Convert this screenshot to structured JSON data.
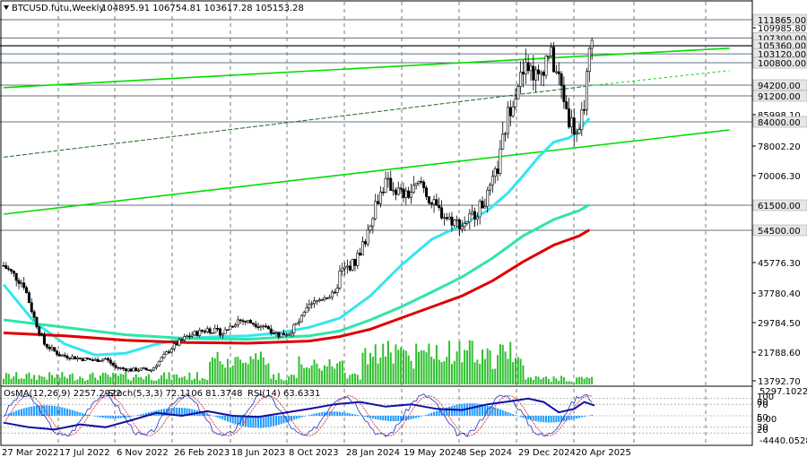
{
  "header": {
    "symbol": "BTCUSD.futu,Weekly",
    "ohlc": "104895.91 106754.81 103617.28 105153.28"
  },
  "indicator_header": {
    "osma": "OsMA(12,26,9) 2257.2922",
    "stoch": "Stoch(5,3,3) 72.1106 81.3748",
    "rsi": "RSI(14) 63.6331"
  },
  "colors": {
    "background": "#ffffff",
    "candles": "#000000",
    "channel": "#00dd00",
    "ema_cyan": "#33e6f0",
    "ema_green": "#2ee6a6",
    "ema_red": "#dd0000",
    "volume": "#2fbf2f",
    "osma": "#1e9bff",
    "stoch_main": "#2030c0",
    "stoch_signal": "#e02020",
    "rsi": "#8a2be2",
    "level_lines": "#607080",
    "highlight_label": "#e6e6e6"
  },
  "chart_data": [
    {
      "type": "candlestick",
      "symbol": "BTCUSD.futu",
      "timeframe": "Weekly",
      "x_tick_labels": [
        "27 Mar 2022",
        "17 Jul 2022",
        "6 Nov 2022",
        "26 Feb 2023",
        "18 Jun 2023",
        "8 Oct 2023",
        "28 Jan 2024",
        "19 May 2024",
        "8 Sep 2024",
        "29 Dec 2024",
        "20 Apr 2025"
      ],
      "y_tick_labels": [
        "109985.80",
        "85998.10",
        "78002.20",
        "70006.30",
        "45776.30",
        "37780.40",
        "29784.50",
        "21788.60",
        "13792.70"
      ],
      "y_tick_values": [
        109985.8,
        85998.1,
        78002.2,
        70006.3,
        45776.3,
        37780.4,
        29784.5,
        21788.6,
        13792.7
      ],
      "ylim": [
        13792.7,
        115000
      ],
      "price_levels": [
        {
          "label": "111865.00",
          "value": 111865
        },
        {
          "label": "107300.00",
          "value": 107300
        },
        {
          "label": "105360.00",
          "value": 105360
        },
        {
          "label": "103120.00",
          "value": 103120
        },
        {
          "label": "100800.00",
          "value": 100800
        },
        {
          "label": "94200.00",
          "value": 94200
        },
        {
          "label": "91200.00",
          "value": 91200
        },
        {
          "label": "84000.00",
          "value": 84000
        },
        {
          "label": "61500.00",
          "value": 61500
        },
        {
          "label": "54500.00",
          "value": 54500
        }
      ],
      "current_price": 105153.28,
      "series": [
        {
          "name": "EMA cyan",
          "points": [
            [
              0,
              40000
            ],
            [
              12,
              30000
            ],
            [
              24,
              24000
            ],
            [
              36,
              21000
            ],
            [
              48,
              21500
            ],
            [
              60,
              24000
            ],
            [
              72,
              25500
            ],
            [
              84,
              26000
            ],
            [
              96,
              26200
            ],
            [
              108,
              27000
            ],
            [
              120,
              28500
            ],
            [
              132,
              31000
            ],
            [
              144,
              37000
            ],
            [
              156,
              45000
            ],
            [
              168,
              52000
            ],
            [
              180,
              56000
            ],
            [
              190,
              60000
            ],
            [
              198,
              65000
            ],
            [
              204,
              70000
            ],
            [
              210,
              75000
            ],
            [
              216,
              79000
            ],
            [
              222,
              80000
            ],
            [
              226,
              82000
            ],
            [
              230,
              85000
            ]
          ]
        },
        {
          "name": "EMA green",
          "points": [
            [
              0,
              30500
            ],
            [
              24,
              28500
            ],
            [
              48,
              26500
            ],
            [
              72,
              25500
            ],
            [
              96,
              25300
            ],
            [
              120,
              26200
            ],
            [
              132,
              27500
            ],
            [
              144,
              30500
            ],
            [
              156,
              34000
            ],
            [
              168,
              38000
            ],
            [
              180,
              42000
            ],
            [
              192,
              47000
            ],
            [
              204,
              53000
            ],
            [
              216,
              57500
            ],
            [
              226,
              60000
            ],
            [
              230,
              61600
            ]
          ]
        },
        {
          "name": "EMA red",
          "points": [
            [
              0,
              27000
            ],
            [
              24,
              26200
            ],
            [
              48,
              25000
            ],
            [
              72,
              24400
            ],
            [
              96,
              24200
            ],
            [
              120,
              24800
            ],
            [
              132,
              26000
            ],
            [
              144,
              28000
            ],
            [
              156,
              31000
            ],
            [
              168,
              34000
            ],
            [
              180,
              37000
            ],
            [
              192,
              41000
            ],
            [
              204,
              46000
            ],
            [
              216,
              50500
            ],
            [
              226,
              53000
            ],
            [
              230,
              54600
            ]
          ]
        }
      ],
      "trend_lines": [
        {
          "name": "upper channel",
          "from": [
            0,
            93500
          ],
          "to": [
            285,
            118500
          ]
        },
        {
          "name": "lower channel",
          "from": [
            0,
            59000
          ],
          "to": [
            285,
            82000
          ]
        },
        {
          "name": "middle channel",
          "from": [
            0,
            75000
          ],
          "to": [
            230,
            94000
          ]
        },
        {
          "name": "middle channel extension",
          "from": [
            230,
            94000
          ],
          "to": [
            285,
            98500
          ]
        }
      ]
    },
    {
      "type": "bar",
      "name": "OsMA / Stoch / RSI subwindow",
      "y_tick_labels": [
        "5297.1022",
        "100",
        "80",
        "70",
        "50",
        "30",
        "20",
        "0.00",
        "-4440.0528"
      ],
      "y_tick_values": [
        5297.1022,
        100,
        80,
        70,
        50,
        30,
        20,
        0,
        -4440.0528
      ],
      "osma_value": 2257.2922,
      "stoch_main": 72.1106,
      "stoch_signal": 81.3748,
      "rsi": 63.6331,
      "rsi_points": [
        [
          0,
          38
        ],
        [
          10,
          30
        ],
        [
          20,
          26
        ],
        [
          30,
          35
        ],
        [
          40,
          30
        ],
        [
          50,
          42
        ],
        [
          60,
          55
        ],
        [
          70,
          50
        ],
        [
          80,
          58
        ],
        [
          90,
          50
        ],
        [
          100,
          48
        ],
        [
          110,
          55
        ],
        [
          120,
          62
        ],
        [
          130,
          70
        ],
        [
          140,
          74
        ],
        [
          150,
          66
        ],
        [
          160,
          70
        ],
        [
          170,
          62
        ],
        [
          180,
          60
        ],
        [
          190,
          70
        ],
        [
          200,
          76
        ],
        [
          206,
          80
        ],
        [
          212,
          74
        ],
        [
          218,
          56
        ],
        [
          224,
          62
        ],
        [
          228,
          74
        ],
        [
          232,
          68
        ]
      ]
    }
  ]
}
